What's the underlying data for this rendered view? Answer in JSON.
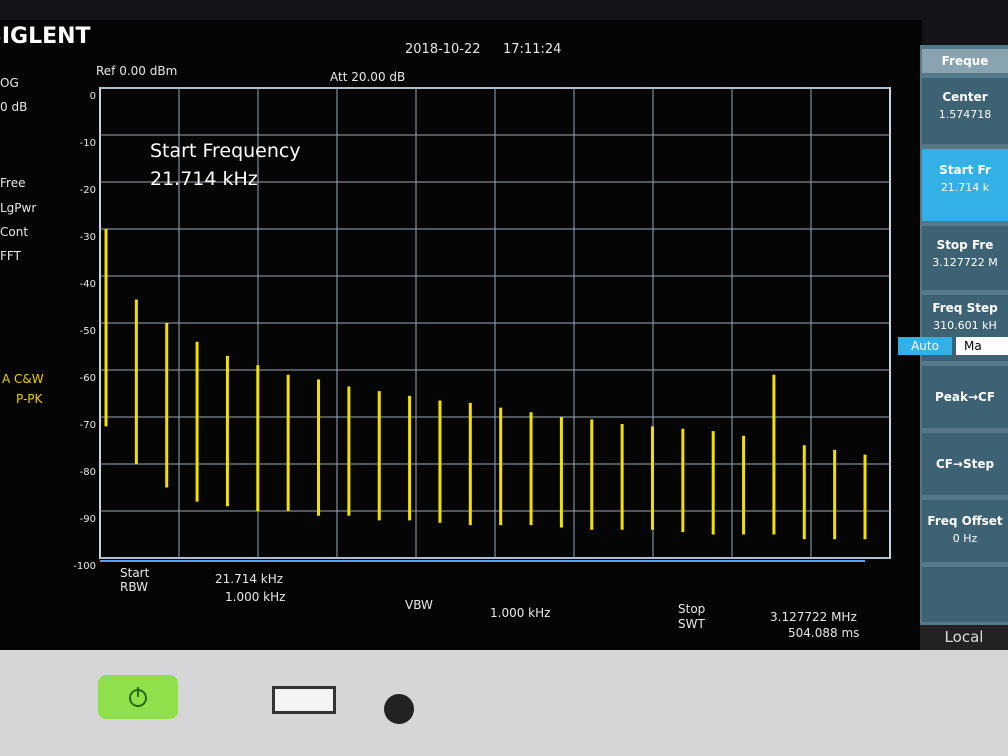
{
  "header": {
    "brand": "SIGLENT",
    "date": "2018-10-22",
    "time": "17:11:24",
    "ref": "Ref 0.00 dBm",
    "att": "Att 20.00 dB"
  },
  "left_panel": [
    "OG",
    "0 dB",
    "Free",
    "LgPwr",
    "Cont",
    "FFT"
  ],
  "trace_info": [
    "A C&W",
    "P-PK"
  ],
  "overlay": {
    "label": "Start Frequency",
    "value": "21.714 kHz"
  },
  "display": {
    "ylim": [
      -100,
      0
    ],
    "yticks": [
      0,
      -10,
      -20,
      -30,
      -40,
      -50,
      -60,
      -70,
      -80,
      -90,
      -100
    ],
    "trace": {
      "color": "#f2e000",
      "upper": [
        -30,
        -45,
        -50,
        -54,
        -57,
        -59,
        -61,
        -62,
        -63.5,
        -64.5,
        -65.5,
        -66.5,
        -67,
        -68,
        -69,
        -70,
        -70.5,
        -71.5,
        -72,
        -72.5,
        -73,
        -74,
        -61,
        -76,
        -77,
        -78
      ],
      "lower": [
        -72,
        -80,
        -85,
        -88,
        -89,
        -90,
        -90,
        -91,
        -91,
        -92,
        -92,
        -92.5,
        -93,
        -93,
        -93,
        -93.5,
        -94,
        -94,
        -94,
        -94.5,
        -95,
        -95,
        -95,
        -96,
        -96,
        -96
      ]
    }
  },
  "footer": {
    "start_label": "Start",
    "start_value": "21.714 kHz",
    "rbw_label": "RBW",
    "rbw_value": "1.000 kHz",
    "vbw_label": "VBW",
    "vbw_value": "1.000 kHz",
    "stop_label": "Stop",
    "stop_value": "3.127722 MHz",
    "swt_label": "SWT",
    "swt_value": "504.088 ms"
  },
  "menu": {
    "title": "Freque",
    "items": [
      {
        "label": "Center",
        "value": "1.574718"
      },
      {
        "label": "Start Fr",
        "value": "21.714 k"
      },
      {
        "label": "Stop Fre",
        "value": "3.127722 M"
      },
      {
        "label": "Freq Step",
        "value": "310.601 kH"
      },
      {
        "label": "Peak→CF"
      },
      {
        "label": "CF→Step"
      },
      {
        "label": "Freq Offset",
        "value": "0 Hz"
      }
    ],
    "auto": "Auto",
    "manual": "Ma",
    "local": "Local"
  }
}
